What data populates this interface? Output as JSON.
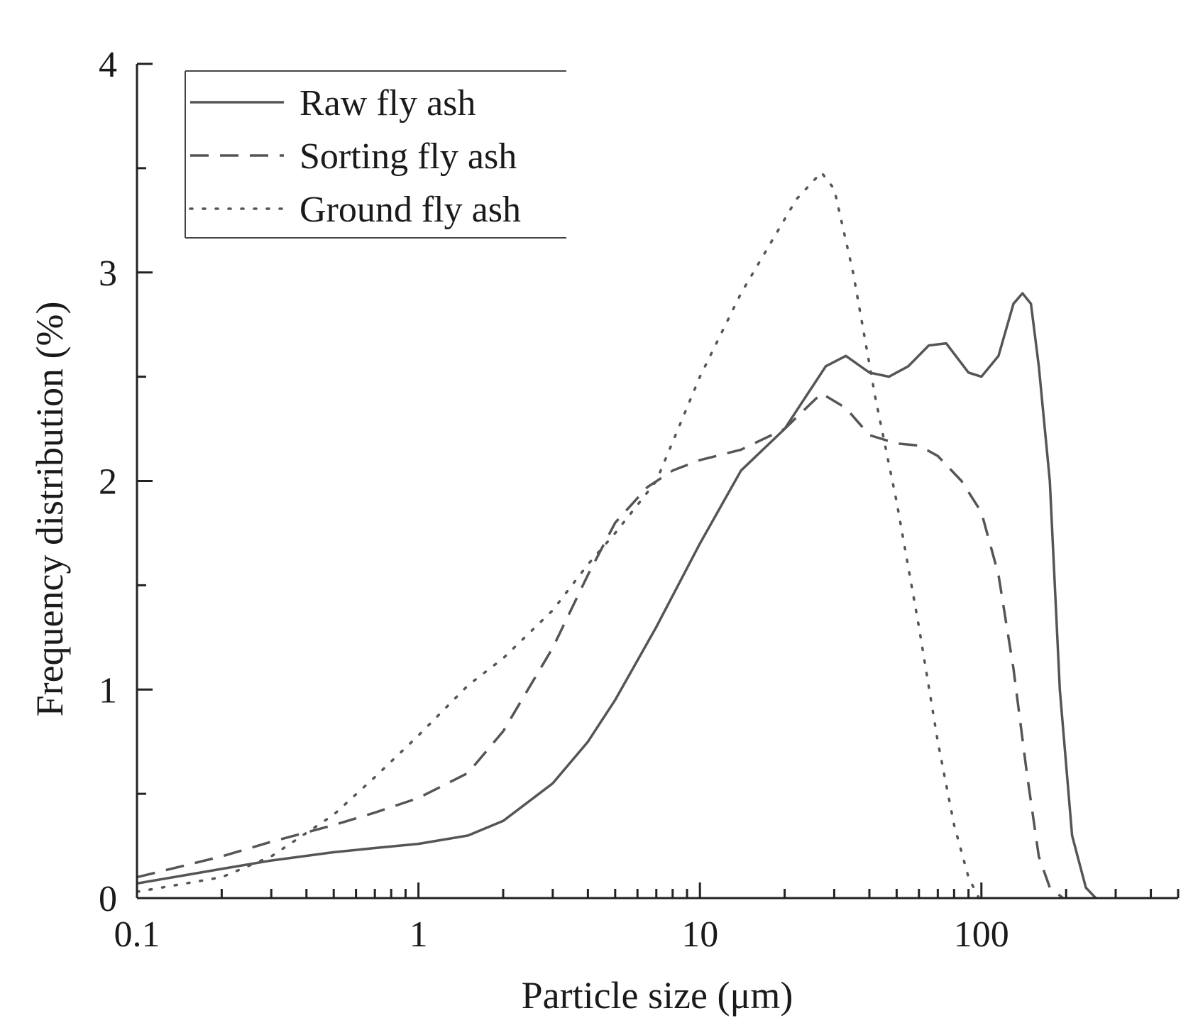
{
  "chart_data": {
    "type": "line",
    "title": "",
    "xlabel": "Particle size (μm)",
    "ylabel": "Frequency distribution (%)",
    "xscale": "log",
    "xlim": [
      0.1,
      500
    ],
    "ylim": [
      0,
      4
    ],
    "x_ticks": [
      {
        "value": 0.1,
        "label": "0.1"
      },
      {
        "value": 1,
        "label": "1"
      },
      {
        "value": 10,
        "label": "10"
      },
      {
        "value": 100,
        "label": "100"
      }
    ],
    "y_ticks": [
      {
        "value": 0,
        "label": "0"
      },
      {
        "value": 1,
        "label": "1"
      },
      {
        "value": 2,
        "label": "2"
      },
      {
        "value": 3,
        "label": "3"
      },
      {
        "value": 4,
        "label": "4"
      }
    ],
    "legend_position": "top-left",
    "grid": false,
    "series": [
      {
        "name": "Raw fly ash",
        "style": "solid",
        "color": "#555555",
        "points": [
          [
            0.1,
            0.07
          ],
          [
            0.2,
            0.14
          ],
          [
            0.3,
            0.18
          ],
          [
            0.5,
            0.22
          ],
          [
            0.7,
            0.24
          ],
          [
            1,
            0.26
          ],
          [
            1.5,
            0.3
          ],
          [
            2,
            0.37
          ],
          [
            3,
            0.55
          ],
          [
            4,
            0.75
          ],
          [
            5,
            0.95
          ],
          [
            7,
            1.3
          ],
          [
            10,
            1.7
          ],
          [
            14,
            2.05
          ],
          [
            20,
            2.25
          ],
          [
            28,
            2.55
          ],
          [
            33,
            2.6
          ],
          [
            40,
            2.52
          ],
          [
            47,
            2.5
          ],
          [
            55,
            2.55
          ],
          [
            65,
            2.65
          ],
          [
            75,
            2.66
          ],
          [
            90,
            2.52
          ],
          [
            100,
            2.5
          ],
          [
            115,
            2.6
          ],
          [
            130,
            2.85
          ],
          [
            140,
            2.9
          ],
          [
            150,
            2.85
          ],
          [
            160,
            2.55
          ],
          [
            175,
            2.0
          ],
          [
            190,
            1.0
          ],
          [
            210,
            0.3
          ],
          [
            235,
            0.05
          ],
          [
            255,
            0.0
          ]
        ]
      },
      {
        "name": "Sorting fly ash",
        "style": "dashed",
        "color": "#555555",
        "points": [
          [
            0.1,
            0.1
          ],
          [
            0.2,
            0.2
          ],
          [
            0.3,
            0.27
          ],
          [
            0.5,
            0.35
          ],
          [
            0.7,
            0.41
          ],
          [
            1,
            0.48
          ],
          [
            1.5,
            0.6
          ],
          [
            2,
            0.8
          ],
          [
            3,
            1.2
          ],
          [
            4,
            1.55
          ],
          [
            5,
            1.8
          ],
          [
            6.5,
            1.97
          ],
          [
            8,
            2.05
          ],
          [
            10,
            2.1
          ],
          [
            14,
            2.15
          ],
          [
            20,
            2.25
          ],
          [
            27,
            2.42
          ],
          [
            33,
            2.35
          ],
          [
            40,
            2.22
          ],
          [
            50,
            2.18
          ],
          [
            60,
            2.17
          ],
          [
            70,
            2.12
          ],
          [
            85,
            2.0
          ],
          [
            100,
            1.85
          ],
          [
            115,
            1.55
          ],
          [
            130,
            1.1
          ],
          [
            145,
            0.6
          ],
          [
            160,
            0.2
          ],
          [
            175,
            0.05
          ],
          [
            195,
            0.0
          ]
        ]
      },
      {
        "name": "Ground fly ash",
        "style": "dotted",
        "color": "#555555",
        "points": [
          [
            0.1,
            0.03
          ],
          [
            0.2,
            0.1
          ],
          [
            0.3,
            0.2
          ],
          [
            0.5,
            0.4
          ],
          [
            0.7,
            0.58
          ],
          [
            1,
            0.78
          ],
          [
            1.5,
            1.02
          ],
          [
            2,
            1.15
          ],
          [
            3,
            1.38
          ],
          [
            4,
            1.6
          ],
          [
            5,
            1.75
          ],
          [
            7,
            2.0
          ],
          [
            10,
            2.5
          ],
          [
            14,
            2.9
          ],
          [
            18,
            3.15
          ],
          [
            22,
            3.35
          ],
          [
            27,
            3.48
          ],
          [
            30,
            3.4
          ],
          [
            35,
            3.0
          ],
          [
            42,
            2.4
          ],
          [
            50,
            1.9
          ],
          [
            60,
            1.3
          ],
          [
            70,
            0.75
          ],
          [
            80,
            0.35
          ],
          [
            90,
            0.1
          ],
          [
            98,
            0.0
          ]
        ]
      }
    ]
  }
}
